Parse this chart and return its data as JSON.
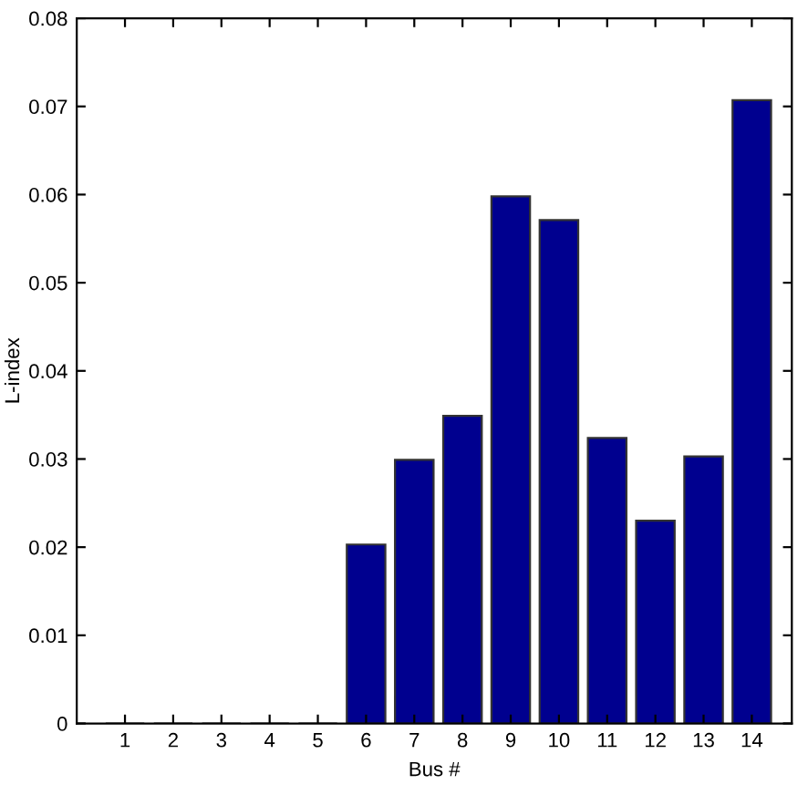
{
  "chart_data": {
    "type": "bar",
    "xlabel": "Bus #",
    "ylabel": "L-index",
    "categories": [
      "1",
      "2",
      "3",
      "4",
      "5",
      "6",
      "7",
      "8",
      "9",
      "10",
      "11",
      "12",
      "13",
      "14"
    ],
    "values": [
      0,
      0,
      0,
      0,
      0,
      0.0203,
      0.0299,
      0.0349,
      0.0598,
      0.0571,
      0.0324,
      0.023,
      0.0303,
      0.0707
    ],
    "color": "#00008f",
    "ylim": [
      0,
      0.08
    ],
    "yticks": [
      0,
      0.01,
      0.02,
      0.03,
      0.04,
      0.05,
      0.06,
      0.07,
      0.08
    ],
    "grid": false
  }
}
